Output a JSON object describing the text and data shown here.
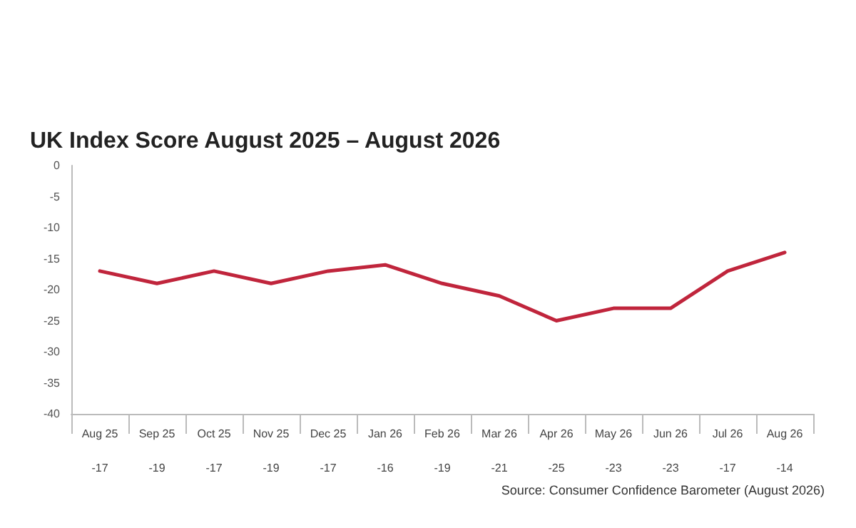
{
  "chart_data": {
    "type": "line",
    "title": "UK Index Score August 2025 – August 2026",
    "categories": [
      "Aug 25",
      "Sep 25",
      "Oct 25",
      "Nov 25",
      "Dec 25",
      "Jan 26",
      "Feb 26",
      "Mar 26",
      "Apr 26",
      "May 26",
      "Jun 26",
      "Jul 26",
      "Aug 26"
    ],
    "series": [
      {
        "color": "#c0253c",
        "values": [
          -17,
          -19,
          -17,
          -19,
          -17,
          -16,
          -19,
          -21,
          -25,
          -23,
          -23,
          -17,
          -14
        ]
      }
    ],
    "ylim": [
      -40,
      0
    ],
    "yticks": [
      -40,
      -35,
      -30,
      -25,
      -20,
      -15,
      -10,
      -5,
      0
    ],
    "data_labels": true,
    "marker": "none",
    "line_style": "solid",
    "annotations": [
      "Source: Consumer Confidence Barometer (August 2026)"
    ]
  }
}
